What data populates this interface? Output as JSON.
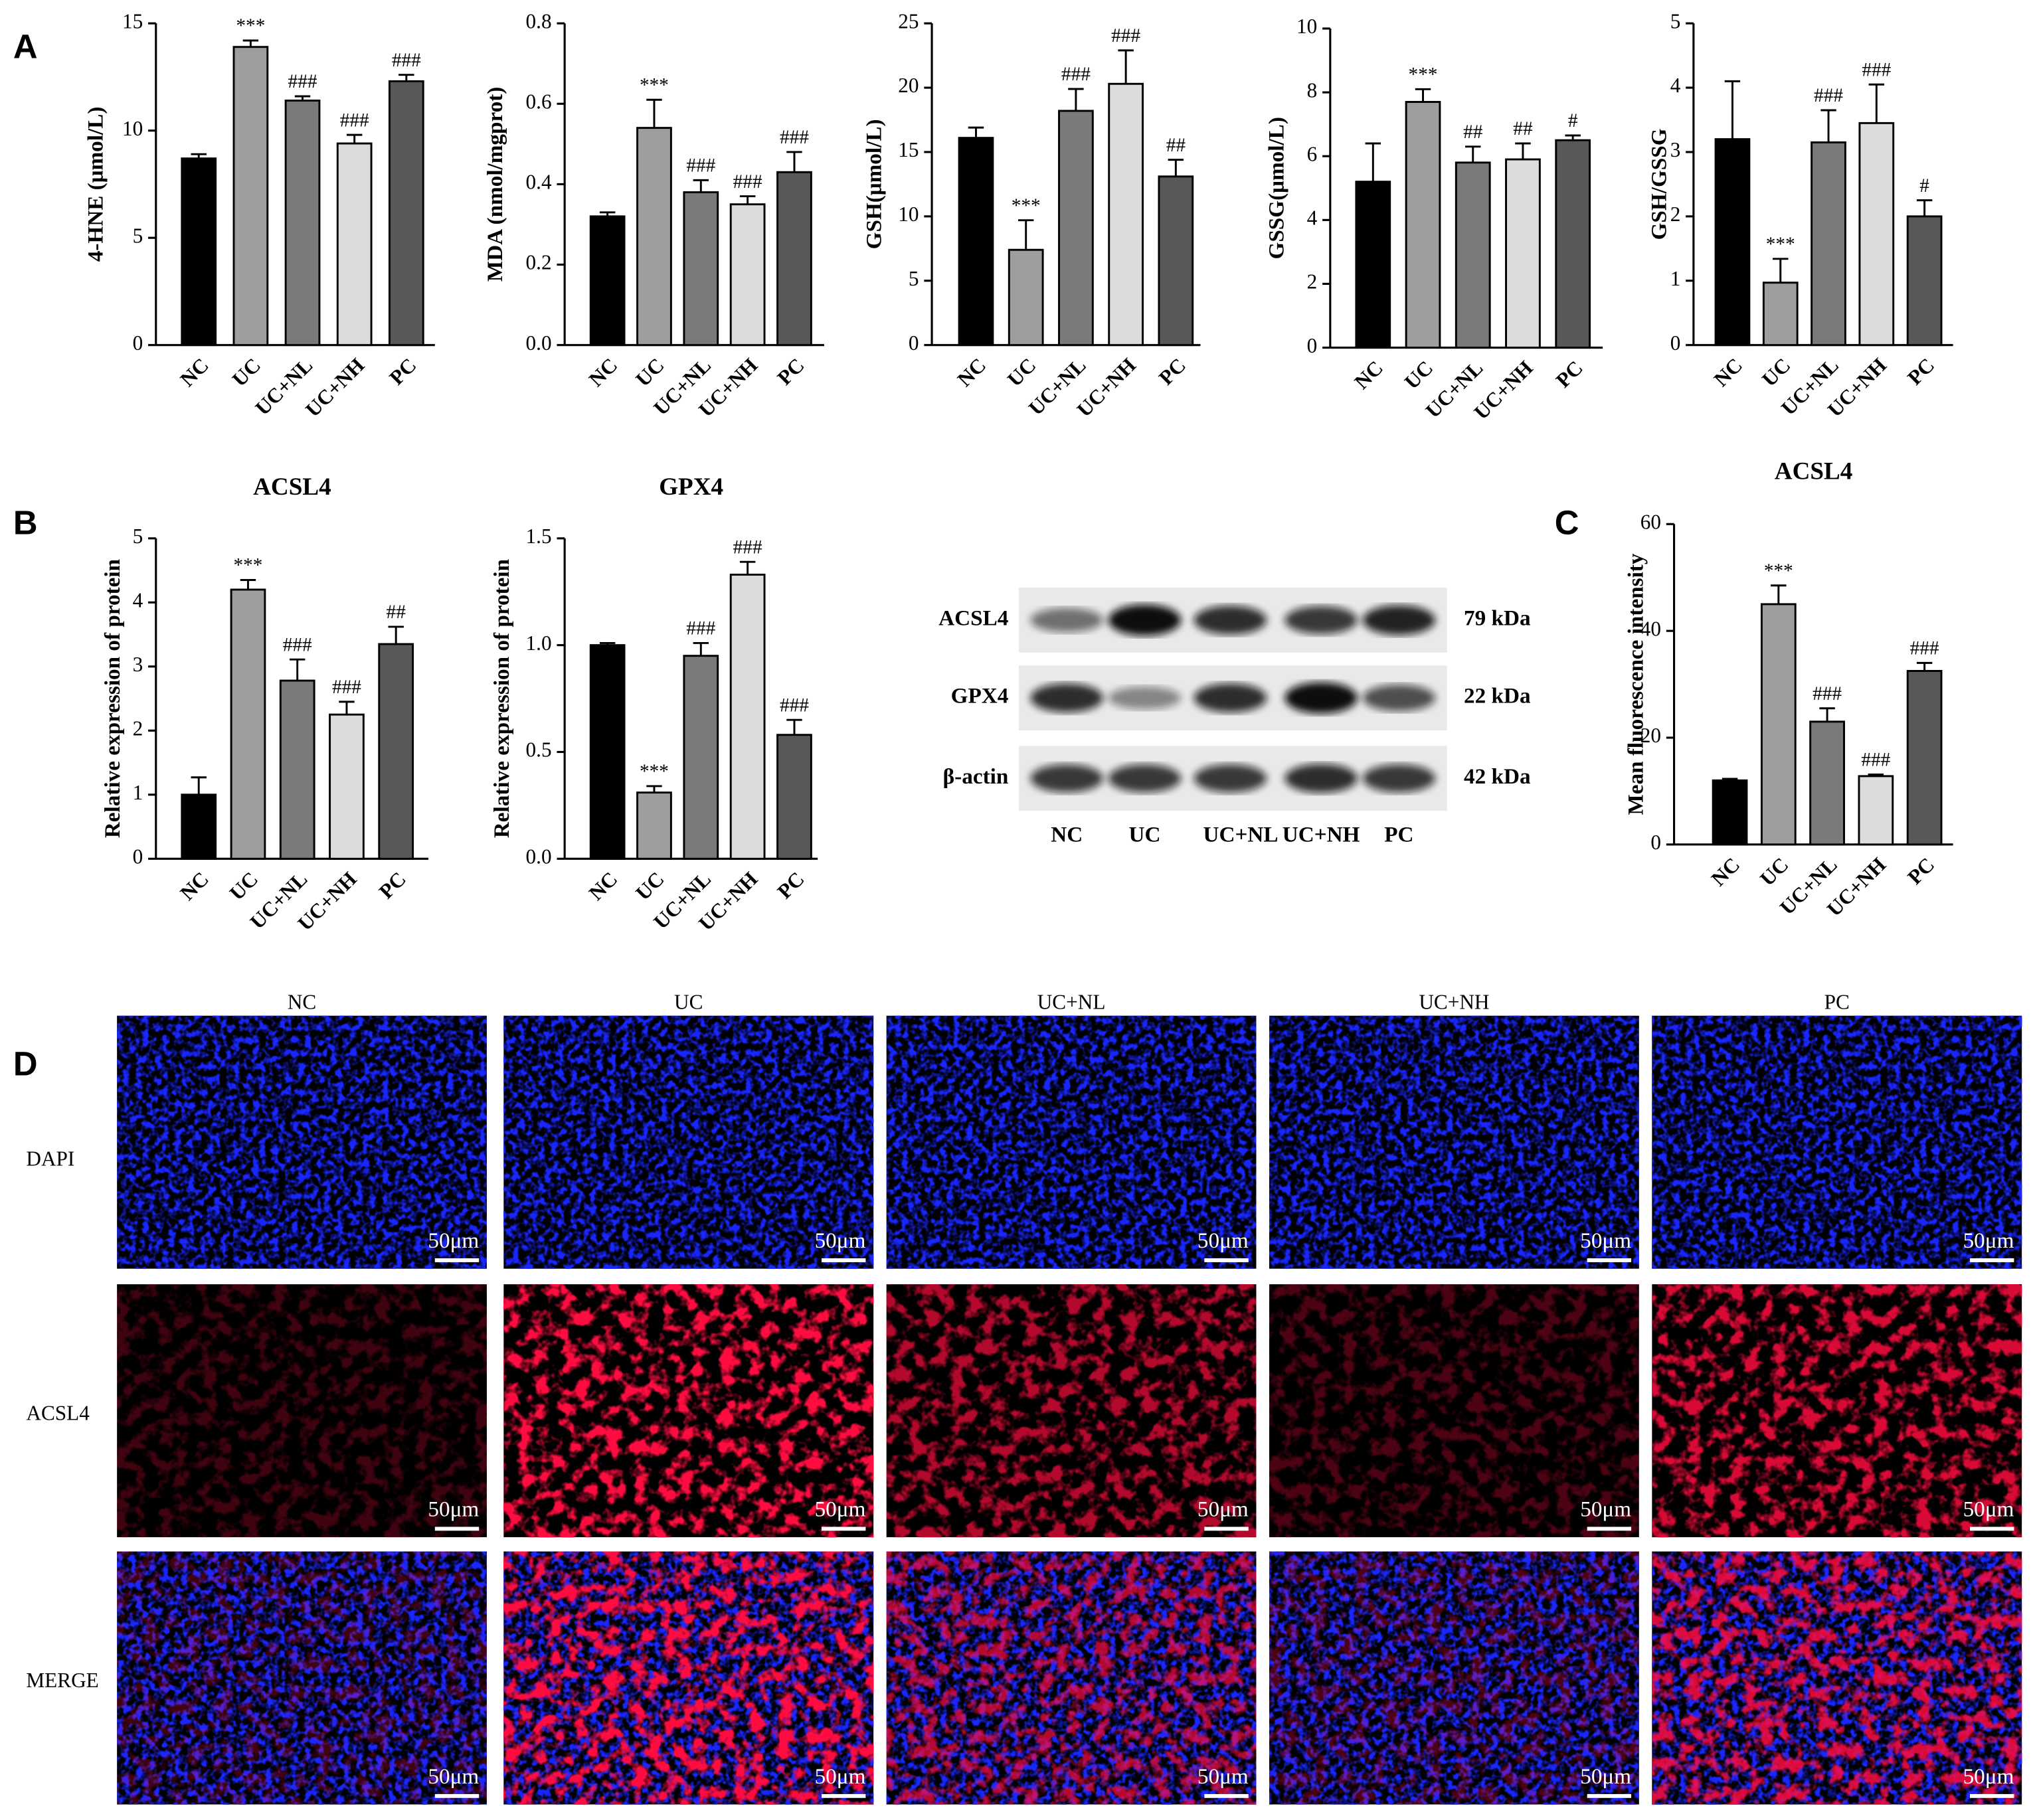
{
  "panel_labels": [
    "A",
    "B",
    "C",
    "D"
  ],
  "chart_data": [
    {
      "type": "bar",
      "ylabel": "4-HNE (μmol/L)",
      "categories": [
        "NC",
        "UC",
        "UC+NL",
        "UC+NH",
        "PC"
      ],
      "values": [
        8.7,
        13.9,
        11.4,
        9.4,
        12.3
      ],
      "errors": [
        0.2,
        0.3,
        0.2,
        0.4,
        0.3
      ],
      "annotations": [
        null,
        "***",
        "###",
        "###",
        "###"
      ],
      "colors": [
        "#000000",
        "#9e9e9e",
        "#7a7a7a",
        "#dcdcdc",
        "#585858"
      ],
      "ylim": [
        0,
        15
      ],
      "yticks": [
        0,
        5,
        10,
        15
      ]
    },
    {
      "type": "bar",
      "ylabel": "MDA (nmol/mgprot)",
      "categories": [
        "NC",
        "UC",
        "UC+NL",
        "UC+NH",
        "PC"
      ],
      "values": [
        0.32,
        0.54,
        0.38,
        0.35,
        0.43
      ],
      "errors": [
        0.01,
        0.07,
        0.03,
        0.02,
        0.05
      ],
      "annotations": [
        null,
        "***",
        "###",
        "###",
        "###"
      ],
      "colors": [
        "#000000",
        "#9e9e9e",
        "#7a7a7a",
        "#dcdcdc",
        "#585858"
      ],
      "ylim": [
        0,
        0.8
      ],
      "yticks": [
        {
          "value": 0,
          "label": "0.0"
        },
        0.2,
        0.4,
        0.6,
        0.8
      ]
    },
    {
      "type": "bar",
      "ylabel": "GSH(μmol/L)",
      "categories": [
        "NC",
        "UC",
        "UC+NL",
        "UC+NH",
        "PC"
      ],
      "values": [
        16.1,
        7.4,
        18.2,
        20.3,
        13.1
      ],
      "errors": [
        0.8,
        2.3,
        1.7,
        2.6,
        1.3
      ],
      "annotations": [
        null,
        "***",
        "###",
        "###",
        "##"
      ],
      "colors": [
        "#000000",
        "#9e9e9e",
        "#7a7a7a",
        "#dcdcdc",
        "#585858"
      ],
      "ylim": [
        0,
        25
      ],
      "yticks": [
        0,
        5,
        10,
        15,
        20,
        25
      ]
    },
    {
      "type": "bar",
      "ylabel": "GSSG(μmol/L)",
      "categories": [
        "NC",
        "UC",
        "UC+NL",
        "UC+NH",
        "PC"
      ],
      "values": [
        5.2,
        7.7,
        5.8,
        5.9,
        6.5
      ],
      "errors": [
        1.2,
        0.4,
        0.5,
        0.5,
        0.15
      ],
      "annotations": [
        null,
        "***",
        "##",
        "##",
        "#"
      ],
      "colors": [
        "#000000",
        "#9e9e9e",
        "#7a7a7a",
        "#dcdcdc",
        "#585858"
      ],
      "ylim": [
        0,
        10
      ],
      "yticks": [
        0,
        2,
        4,
        6,
        8,
        10
      ]
    },
    {
      "type": "bar",
      "ylabel": "GSH/GSSG",
      "categories": [
        "NC",
        "UC",
        "UC+NL",
        "UC+NH",
        "PC"
      ],
      "values": [
        3.2,
        0.97,
        3.15,
        3.45,
        2.0
      ],
      "errors": [
        0.9,
        0.37,
        0.5,
        0.6,
        0.25
      ],
      "annotations": [
        null,
        "***",
        "###",
        "###",
        "#"
      ],
      "colors": [
        "#000000",
        "#9e9e9e",
        "#7a7a7a",
        "#dcdcdc",
        "#585858"
      ],
      "ylim": [
        0,
        5
      ],
      "yticks": [
        0,
        1,
        2,
        3,
        4,
        5
      ]
    },
    {
      "type": "bar",
      "title": "ACSL4",
      "ylabel": "Relative expression of protein",
      "categories": [
        "NC",
        "UC",
        "UC+NL",
        "UC+NH",
        "PC"
      ],
      "values": [
        1.0,
        4.2,
        2.78,
        2.25,
        3.35
      ],
      "errors": [
        0.27,
        0.15,
        0.33,
        0.2,
        0.27
      ],
      "annotations": [
        null,
        "***",
        "###",
        "###",
        "##"
      ],
      "colors": [
        "#000000",
        "#9e9e9e",
        "#7a7a7a",
        "#dcdcdc",
        "#585858"
      ],
      "ylim": [
        0,
        5
      ],
      "yticks": [
        0,
        1,
        2,
        3,
        4,
        5
      ]
    },
    {
      "type": "bar",
      "title": "GPX4",
      "ylabel": "Relative expression of protein",
      "categories": [
        "NC",
        "UC",
        "UC+NL",
        "UC+NH",
        "PC"
      ],
      "values": [
        1.0,
        0.31,
        0.95,
        1.33,
        0.58
      ],
      "errors": [
        0.01,
        0.03,
        0.06,
        0.06,
        0.07
      ],
      "annotations": [
        null,
        "***",
        "###",
        "###",
        "###"
      ],
      "colors": [
        "#000000",
        "#9e9e9e",
        "#7a7a7a",
        "#dcdcdc",
        "#585858"
      ],
      "ylim": [
        0,
        1.5
      ],
      "yticks": [
        {
          "value": 0,
          "label": "0.0"
        },
        0.5,
        {
          "value": 1,
          "label": "1.0"
        },
        1.5
      ]
    },
    {
      "type": "bar",
      "title": "ACSL4",
      "ylabel": "Mean fluorescence intensity",
      "categories": [
        "NC",
        "UC",
        "UC+NL",
        "UC+NH",
        "PC"
      ],
      "values": [
        12,
        45,
        23,
        12.8,
        32.5
      ],
      "errors": [
        0.3,
        3.5,
        2.5,
        0.3,
        1.5
      ],
      "annotations": [
        null,
        "***",
        "###",
        "###",
        "###"
      ],
      "colors": [
        "#000000",
        "#9e9e9e",
        "#7a7a7a",
        "#dcdcdc",
        "#585858"
      ],
      "ylim": [
        0,
        60
      ],
      "yticks": [
        0,
        20,
        40,
        60
      ]
    }
  ],
  "western_blot": {
    "proteins": [
      "ACSL4",
      "GPX4",
      "β-actin"
    ],
    "sizes": [
      "79 kDa",
      "22 kDa",
      "42 kDa"
    ],
    "lanes": [
      "NC",
      "UC",
      "UC+NL",
      "UC+NH",
      "PC"
    ]
  },
  "immunofluorescence": {
    "columns": [
      "NC",
      "UC",
      "UC+NL",
      "UC+NH",
      "PC"
    ],
    "rows": [
      "DAPI",
      "ACSL4",
      "MERGE"
    ],
    "scale_bar": "50μm"
  }
}
